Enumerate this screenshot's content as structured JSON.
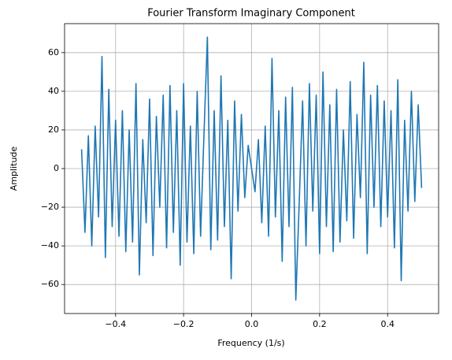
{
  "chart_data": {
    "type": "line",
    "title": "Fourier Transform Imaginary Component",
    "xlabel": "Frequency (1/s)",
    "ylabel": "Amplitude",
    "color": "#1f77b4",
    "grid": true,
    "x": [
      -0.5,
      -0.49,
      -0.48,
      -0.47,
      -0.46,
      -0.45,
      -0.44,
      -0.43,
      -0.42,
      -0.41,
      -0.4,
      -0.39,
      -0.38,
      -0.37,
      -0.36,
      -0.35,
      -0.34,
      -0.33,
      -0.32,
      -0.31,
      -0.3,
      -0.29,
      -0.28,
      -0.27,
      -0.26,
      -0.25,
      -0.24,
      -0.23,
      -0.22,
      -0.21,
      -0.2,
      -0.19,
      -0.18,
      -0.17,
      -0.16,
      -0.15,
      -0.14,
      -0.13,
      -0.12,
      -0.11,
      -0.1,
      -0.09,
      -0.08,
      -0.07,
      -0.06,
      -0.05,
      -0.04,
      -0.03,
      -0.02,
      -0.01,
      0,
      0.01,
      0.02,
      0.03,
      0.04,
      0.05,
      0.06,
      0.07,
      0.08,
      0.09,
      0.1,
      0.11,
      0.12,
      0.13,
      0.14,
      0.15,
      0.16,
      0.17,
      0.18,
      0.19,
      0.2,
      0.21,
      0.22,
      0.23,
      0.24,
      0.25,
      0.26,
      0.27,
      0.28,
      0.29,
      0.3,
      0.31,
      0.32,
      0.33,
      0.34,
      0.35,
      0.36,
      0.37,
      0.38,
      0.39,
      0.4,
      0.41,
      0.42,
      0.43,
      0.44,
      0.45,
      0.46,
      0.47,
      0.48,
      0.49,
      0.5
    ],
    "values": [
      10,
      -33,
      17,
      -40,
      22,
      -25,
      58,
      -46,
      41,
      -30,
      25,
      -35,
      30,
      -43,
      20,
      -38,
      44,
      -55,
      15,
      -28,
      36,
      -45,
      27,
      -20,
      38,
      -41,
      43,
      -33,
      30,
      -50,
      44,
      -38,
      22,
      -44,
      40,
      -35,
      18,
      68,
      -42,
      30,
      -37,
      48,
      -30,
      25,
      -57,
      35,
      -22,
      28,
      -15,
      12,
      0,
      -12,
      15,
      -28,
      22,
      -35,
      57,
      -25,
      30,
      -48,
      37,
      -30,
      42,
      -68,
      -18,
      35,
      -40,
      44,
      -22,
      38,
      -44,
      50,
      -30,
      33,
      -43,
      41,
      -38,
      20,
      -27,
      45,
      -36,
      28,
      -15,
      55,
      -44,
      38,
      -20,
      43,
      -30,
      35,
      -25,
      30,
      -41,
      46,
      -58,
      25,
      -22,
      40,
      -17,
      33,
      -10
    ],
    "xlim": [
      -0.55,
      0.55
    ],
    "ylim": [
      -75,
      75
    ],
    "xticks": [
      {
        "value": -0.4,
        "label": "−0.4"
      },
      {
        "value": -0.2,
        "label": "−0.2"
      },
      {
        "value": 0,
        "label": "0.0"
      },
      {
        "value": 0.2,
        "label": "0.2"
      },
      {
        "value": 0.4,
        "label": "0.4"
      }
    ],
    "yticks": [
      {
        "value": -60,
        "label": "−60"
      },
      {
        "value": -40,
        "label": "−40"
      },
      {
        "value": -20,
        "label": "−20"
      },
      0,
      20,
      40,
      60
    ]
  }
}
